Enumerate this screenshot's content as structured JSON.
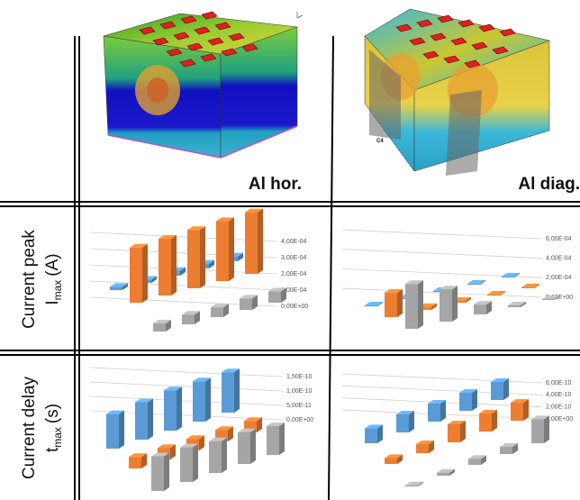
{
  "columns": [
    {
      "label": "Al hor."
    },
    {
      "label": "Al diag.",
      "inset_label": "C4"
    }
  ],
  "rows": [
    {
      "title": "Current peak",
      "symbol": "I",
      "subscript": "max",
      "unit": "(A)"
    },
    {
      "title": "Current delay",
      "symbol": "t",
      "subscript": "max",
      "unit": "(s)"
    }
  ],
  "chart_data": [
    {
      "type": "bar3d",
      "categories": [
        null,
        null,
        null,
        null,
        null
      ],
      "series": [
        {
          "color": "#5b9bd5",
          "values": [
            2e-05,
            2e-05,
            3e-05,
            3e-05,
            3e-05
          ]
        },
        {
          "color": "#ed7d31",
          "values": [
            0.00034,
            0.00035,
            0.00036,
            0.00037,
            0.00038
          ]
        },
        {
          "color": "#a5a5a5",
          "values": [
            5e-05,
            6e-05,
            6e-05,
            7e-05,
            7e-05
          ]
        }
      ],
      "ylim": [
        0,
        0.0004
      ],
      "yticks": [
        {
          "value": 0,
          "label": "0,00E+00"
        },
        {
          "value": 0.0001,
          "label": "1,00E-04"
        },
        {
          "value": 0.0002,
          "label": "2,00E-04"
        },
        {
          "value": 0.0003,
          "label": "3,00E-04"
        },
        {
          "value": 0.0004,
          "label": "4,00E-04"
        }
      ],
      "grid": true
    },
    {
      "type": "bar3d",
      "categories": [
        null,
        null,
        null,
        null,
        null
      ],
      "series": [
        {
          "color": "#5b9bd5",
          "values": [
            1e-05,
            1e-05,
            1e-05,
            1e-05,
            1e-05
          ]
        },
        {
          "color": "#ed7d31",
          "values": [
            0.00025,
            3e-05,
            2e-05,
            1e-05,
            1e-05
          ]
        },
        {
          "color": "#a5a5a5",
          "values": [
            0.00046,
            0.00033,
            0.0001,
            2e-05,
            1e-05
          ]
        }
      ],
      "ylim": [
        0,
        0.0006
      ],
      "yticks": [
        {
          "value": 0,
          "label": "0,00E+00"
        },
        {
          "value": 0.0002,
          "label": "2,00E-04"
        },
        {
          "value": 0.0004,
          "label": "4,00E-04"
        },
        {
          "value": 0.0006,
          "label": "6,00E-04"
        }
      ],
      "grid": true
    },
    {
      "type": "bar3d",
      "categories": [
        null,
        null,
        null,
        null,
        null
      ],
      "series": [
        {
          "color": "#5b9bd5",
          "values": [
            1.2e-10,
            1.3e-10,
            1.4e-10,
            1.4e-10,
            1.4e-10
          ]
        },
        {
          "color": "#ed7d31",
          "values": [
            4e-11,
            4e-11,
            4e-11,
            4e-11,
            4e-11
          ]
        },
        {
          "color": "#a5a5a5",
          "values": [
            1.2e-10,
            1.2e-10,
            1.1e-10,
            1.1e-10,
            1e-10
          ]
        }
      ],
      "ylim": [
        0,
        1.5e-10
      ],
      "yticks": [
        {
          "value": 0,
          "label": "0,00E+00"
        },
        {
          "value": 5e-11,
          "label": "5,00E-11"
        },
        {
          "value": 1e-10,
          "label": "1,00E-10"
        },
        {
          "value": 1.5e-10,
          "label": "1,50E-10"
        }
      ],
      "grid": true
    },
    {
      "type": "bar3d",
      "categories": [
        null,
        null,
        null,
        null,
        null
      ],
      "series": [
        {
          "color": "#5b9bd5",
          "values": [
            2.5e-10,
            3e-10,
            3e-10,
            3e-10,
            3e-10
          ]
        },
        {
          "color": "#ed7d31",
          "values": [
            1e-10,
            1.5e-10,
            3e-10,
            3e-10,
            3e-10
          ]
        },
        {
          "color": "#a5a5a5",
          "values": [
            2e-11,
            5e-11,
            1e-10,
            1.2e-10,
            4e-10
          ]
        }
      ],
      "ylim": [
        0,
        6e-10
      ],
      "yticks": [
        {
          "value": 0,
          "label": "0,00E+00"
        },
        {
          "value": 2e-10,
          "label": "2,00E-10"
        },
        {
          "value": 4e-10,
          "label": "4,00E-10"
        },
        {
          "value": 6e-10,
          "label": "6,00E-10"
        }
      ],
      "grid": true
    }
  ]
}
